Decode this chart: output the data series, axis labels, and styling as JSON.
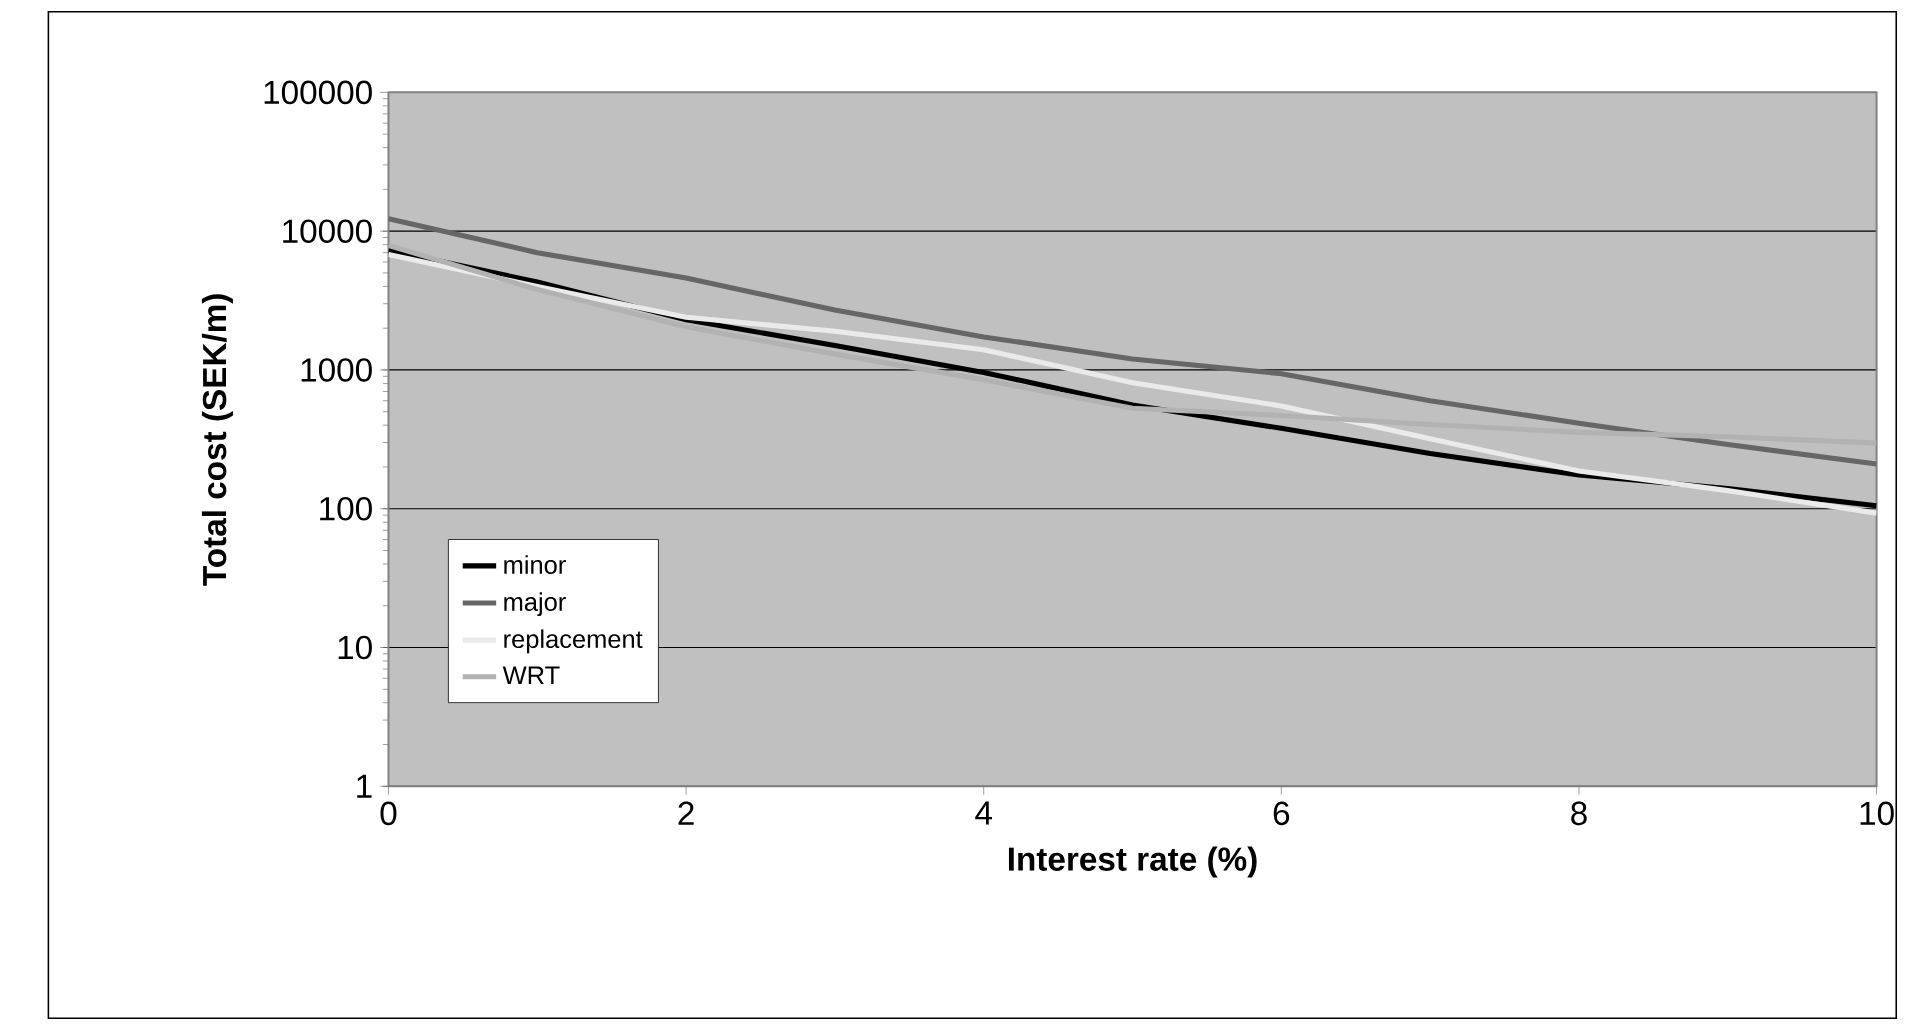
{
  "chart_data": {
    "type": "line",
    "xlabel": "Interest rate (%)",
    "ylabel": "Total cost (SEK/m)",
    "log": "y",
    "xlim": [
      0,
      10
    ],
    "xticks": [
      0,
      2,
      4,
      6,
      8,
      10
    ],
    "ylim": [
      1,
      100000
    ],
    "yticks": [
      1,
      10,
      100,
      1000,
      10000,
      100000
    ],
    "grid": "y",
    "legend": "left",
    "marker": "none",
    "line_style": "solid",
    "x": [
      0,
      1,
      2,
      3,
      4,
      5,
      6,
      7,
      8,
      9,
      10
    ],
    "series": [
      {
        "name": "minor",
        "color": "#000000",
        "values": [
          7300,
          4300,
          2300,
          1500,
          960,
          560,
          380,
          250,
          175,
          140,
          105
        ]
      },
      {
        "name": "major",
        "color": "#666666",
        "values": [
          12300,
          7000,
          4600,
          2700,
          1730,
          1200,
          940,
          600,
          413,
          290,
          210
        ]
      },
      {
        "name": "replacement",
        "color": "#eaeaea",
        "values": [
          6800,
          4000,
          2400,
          1900,
          1400,
          810,
          550,
          320,
          187,
          135,
          93
        ]
      },
      {
        "name": "WRT",
        "color": "#b2b2b2",
        "values": [
          7900,
          3800,
          2050,
          1300,
          850,
          530,
          470,
          405,
          355,
          330,
          297
        ]
      }
    ]
  }
}
